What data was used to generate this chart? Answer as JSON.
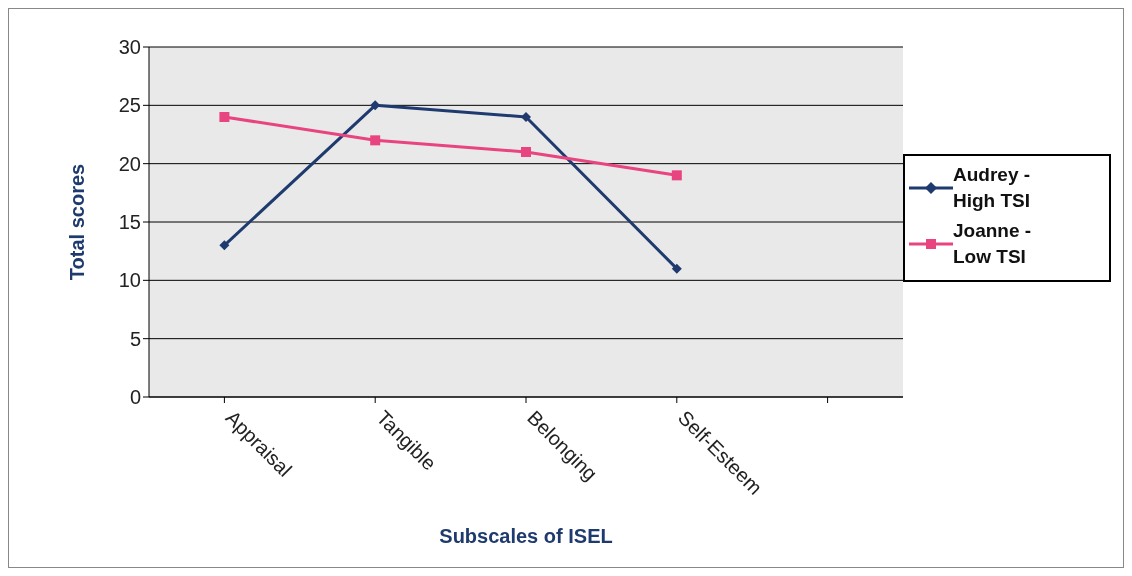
{
  "chart_data": {
    "type": "line",
    "xlabel": "Subscales of ISEL",
    "ylabel": "Total scores",
    "categories": [
      "Appraisal",
      "Tangible",
      "Belonging",
      "Self-Esteem",
      null
    ],
    "series": [
      {
        "name": "Audrey - High TSI",
        "color": "#1f3a6e",
        "marker": "diamond",
        "values": [
          13,
          25,
          24,
          11,
          null
        ]
      },
      {
        "name": "Joanne - Low TSI",
        "color": "#e8447f",
        "marker": "square",
        "values": [
          24,
          22,
          21,
          19,
          null
        ]
      }
    ],
    "ylim": [
      0,
      30
    ],
    "yticks": [
      0,
      5,
      10,
      15,
      20,
      25,
      30
    ],
    "grid": "y",
    "legend": "right"
  }
}
